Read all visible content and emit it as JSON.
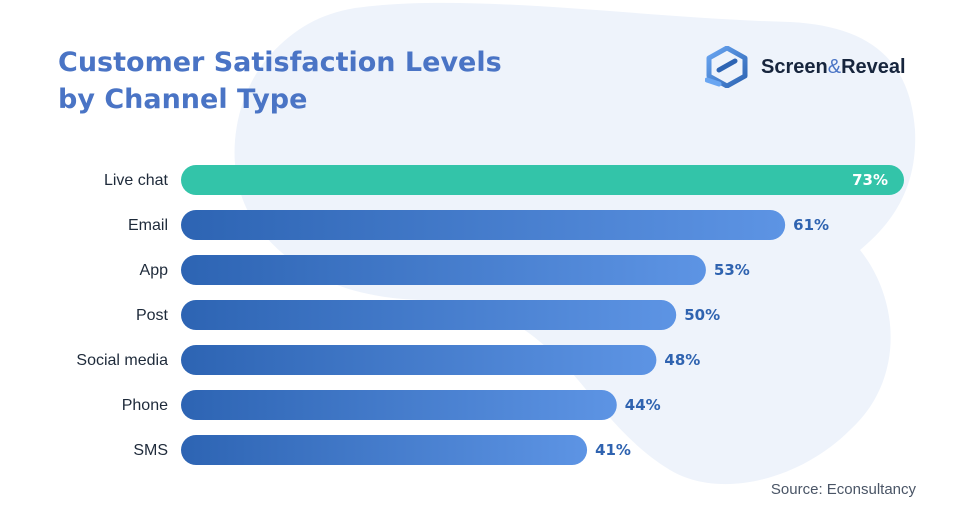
{
  "title_lines": [
    "Customer Satisfaction Levels",
    "by Channel Type"
  ],
  "brand": {
    "part1": "Screen",
    "amp": "&",
    "part2": "Reveal"
  },
  "source": "Source: Econsultancy",
  "colors": {
    "title": "#4a74c5",
    "highlight_bar": "#33c4a9",
    "bar_start": "#2d64b3",
    "bar_end": "#5d94e4",
    "value_text": "#2f63b0",
    "background_blob": "#eef3fb"
  },
  "icons": {
    "logo": "screen-reveal-logo-icon"
  },
  "chart_data": {
    "type": "bar",
    "orientation": "horizontal",
    "title": "Customer Satisfaction Levels by Channel Type",
    "categories": [
      "Live chat",
      "Email",
      "App",
      "Post",
      "Social media",
      "Phone",
      "SMS"
    ],
    "values": [
      73,
      61,
      53,
      50,
      48,
      44,
      41
    ],
    "value_labels": [
      "73%",
      "61%",
      "53%",
      "50%",
      "48%",
      "44%",
      "41%"
    ],
    "unit": "%",
    "highlighted_category": "Live chat",
    "xlim": [
      0,
      73
    ],
    "grid": false,
    "legend": "none"
  }
}
